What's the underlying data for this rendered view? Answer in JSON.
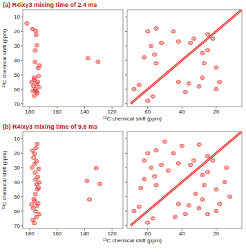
{
  "chart_data": [
    {
      "type": "scatter",
      "title": "(a) R4ixy3 mixing time of 2.4 ms",
      "x_label": "¹³C chemical shift (ppm)",
      "y_label": "¹³C chemical shift (ppm)",
      "xlim": [
        185,
        112
      ],
      "ylim": [
        5,
        72
      ],
      "xticks": [
        180,
        160,
        140,
        120
      ],
      "yticks": [
        10,
        20,
        30,
        40,
        50,
        60,
        70
      ],
      "series": [
        {
          "type": "scatter",
          "color": "#e3241f",
          "marker": "contour",
          "x": [
            178.5,
            177.2,
            176.4,
            175.8,
            174.9,
            174.1,
            173.2,
            176.8,
            175.1,
            174.5,
            173.8,
            177.9,
            175.5,
            176.1,
            172.8,
            174.8,
            175.9,
            177.5,
            176.6,
            182.0,
            137.5,
            130.2,
            175.3,
            173.6
          ],
          "values": [
            55.2,
            57.8,
            53.4,
            60.1,
            56.3,
            54.9,
            58.6,
            52.1,
            61.5,
            62.8,
            45.3,
            18.4,
            19.8,
            41.2,
            43.5,
            29.6,
            33.1,
            61.2,
            64.5,
            14.5,
            38.6,
            41.0,
            22.5,
            51.0
          ]
        }
      ]
    },
    {
      "type": "scatter",
      "tick_labels": "x",
      "xlim": [
        72,
        5
      ],
      "ylim": [
        5,
        72
      ],
      "xticks": [
        60,
        40,
        20
      ],
      "yticks": [
        10,
        20,
        30,
        40,
        50,
        60,
        70
      ],
      "series": [
        {
          "type": "scatter",
          "color": "#e3241f",
          "marker": "contour",
          "x": [
            55,
            18,
            60,
            68,
            58,
            30,
            55,
            42,
            62,
            38,
            52,
            28,
            25,
            22,
            33,
            25,
            57,
            65,
            42,
            27,
            60,
            20,
            35,
            28,
            56,
            36,
            45,
            20
          ],
          "values": [
            18,
            55,
            68,
            60,
            30,
            58,
            42,
            55,
            38,
            62,
            28,
            52,
            22,
            25,
            25,
            33,
            65,
            57,
            27,
            42,
            20,
            60,
            28,
            35,
            36,
            56,
            20,
            45
          ]
        },
        {
          "type": "line",
          "color": "#e3241f",
          "x": [
            70,
            5
          ],
          "values": [
            70,
            5
          ]
        }
      ]
    },
    {
      "type": "scatter",
      "title": "(b) R4ixy3 mixing time of 9.6 ms",
      "x_label": "¹³C chemical shift (ppm)",
      "y_label": "¹³C chemical shift (ppm)",
      "xlim": [
        185,
        112
      ],
      "ylim": [
        5,
        72
      ],
      "xticks": [
        180,
        160,
        140,
        120
      ],
      "yticks": [
        10,
        20,
        30,
        40,
        50,
        60,
        70
      ],
      "series": [
        {
          "type": "scatter",
          "color": "#e3241f",
          "marker": "contour",
          "x": [
            178.6,
            177.4,
            176.2,
            175.5,
            174.7,
            173.9,
            173.1,
            176.9,
            175.2,
            174.3,
            177.8,
            176.5,
            175.0,
            173.6,
            178.2,
            176.0,
            174.9,
            177.1,
            175.7,
            174.1,
            176.7,
            175.4,
            173.4,
            177.6,
            175.9,
            174.6,
            176.3,
            172.9,
            138.2,
            131.5,
            129.0,
            136.4
          ],
          "values": [
            55.4,
            58.0,
            53.2,
            60.3,
            56.5,
            54.7,
            62.1,
            51.8,
            64.2,
            45.0,
            18.2,
            20.4,
            41.5,
            43.8,
            29.9,
            33.4,
            25.6,
            23.1,
            38.2,
            36.5,
            68.3,
            16.5,
            30.8,
            66.1,
            48.2,
            13.6,
            27.4,
            40.2,
            39.1,
            30.4,
            41.3,
            52.0
          ]
        }
      ]
    },
    {
      "type": "scatter",
      "tick_labels": "x",
      "xlim": [
        72,
        5
      ],
      "ylim": [
        5,
        72
      ],
      "xticks": [
        60,
        40,
        20
      ],
      "yticks": [
        10,
        20,
        30,
        40,
        50,
        60,
        70
      ],
      "series": [
        {
          "type": "scatter",
          "color": "#e3241f",
          "marker": "contour",
          "x": [
            55,
            18,
            60,
            68,
            58,
            30,
            55,
            42,
            62,
            38,
            52,
            28,
            25,
            22,
            33,
            25,
            57,
            65,
            42,
            27,
            60,
            20,
            35,
            28,
            56,
            36,
            45,
            20,
            40,
            15,
            50,
            12,
            64,
            44,
            30,
            14,
            62,
            25,
            48,
            32
          ],
          "values": [
            18,
            55,
            68,
            60,
            30,
            58,
            42,
            55,
            38,
            62,
            28,
            52,
            22,
            25,
            25,
            33,
            65,
            57,
            27,
            42,
            20,
            60,
            28,
            35,
            36,
            56,
            20,
            45,
            15,
            40,
            12,
            50,
            44,
            64,
            14,
            30,
            25,
            62,
            32,
            48
          ]
        },
        {
          "type": "line",
          "color": "#e3241f",
          "x": [
            70,
            5
          ],
          "values": [
            70,
            5
          ]
        }
      ]
    }
  ]
}
